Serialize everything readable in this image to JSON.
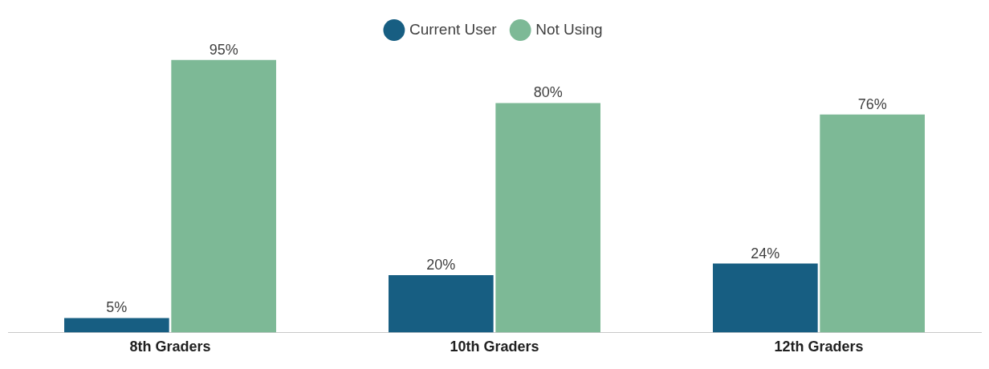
{
  "chart_data": {
    "type": "bar",
    "categories": [
      "8th Graders",
      "10th Graders",
      "12th Graders"
    ],
    "series": [
      {
        "name": "Current User",
        "color": "#175e82",
        "values": [
          5,
          20,
          24
        ],
        "value_labels": [
          "5%",
          "20%",
          "24%"
        ]
      },
      {
        "name": "Not Using",
        "color": "#7db996",
        "values": [
          95,
          80,
          76
        ],
        "value_labels": [
          "95%",
          "80%",
          "76%"
        ]
      }
    ],
    "legend": "top",
    "grid": false
  }
}
